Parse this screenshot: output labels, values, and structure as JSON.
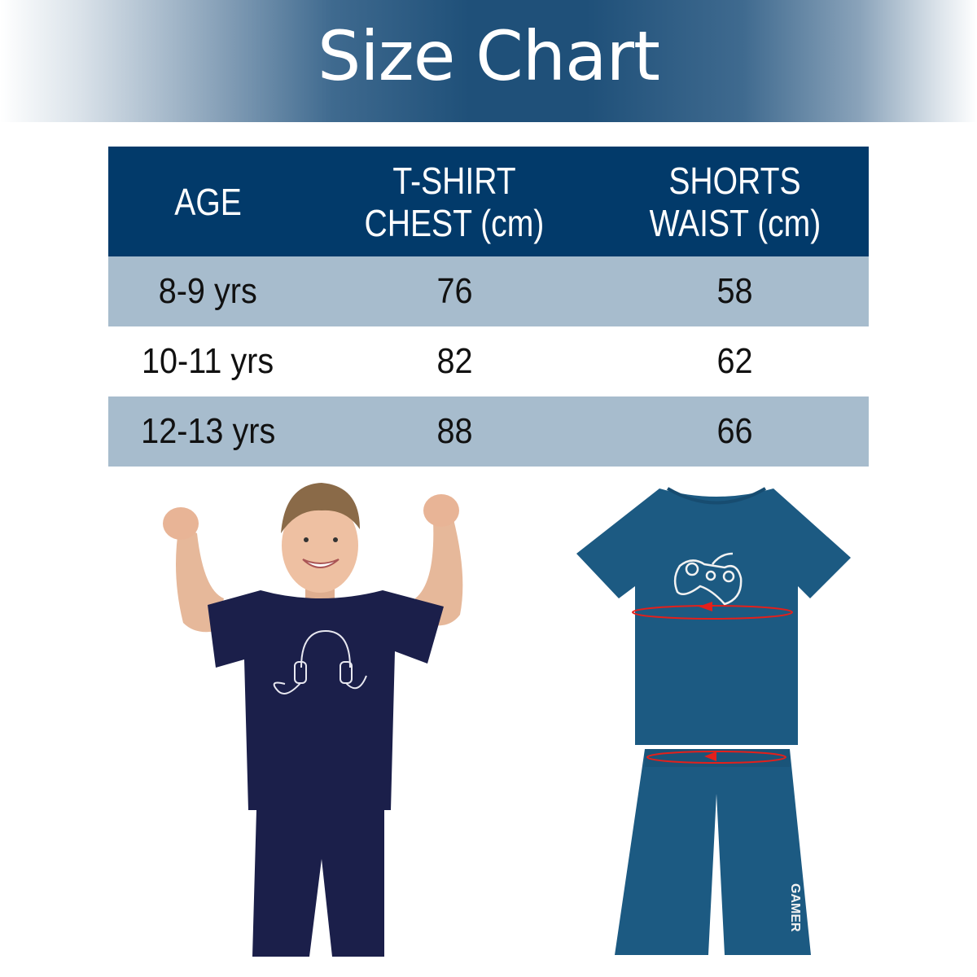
{
  "banner": {
    "title": "Size Chart"
  },
  "table": {
    "headers": [
      [
        "AGE"
      ],
      [
        "T-SHIRT",
        "CHEST (cm)"
      ],
      [
        "SHORTS",
        "WAIST (cm)"
      ]
    ],
    "rows": [
      [
        "8-9 yrs",
        "76",
        "58"
      ],
      [
        "10-11 yrs",
        "82",
        "62"
      ],
      [
        "12-13 yrs",
        "88",
        "66"
      ]
    ]
  },
  "images": {
    "model_photo": "boy wearing navy t-shirt with headphones print and navy shorts",
    "product_photo": "blue t-shirt with game controller print and blue shorts with chest and waist measurement markers",
    "shorts_print": "GAMER"
  },
  "colors": {
    "header": "#023a6a",
    "alt_row": "#a7bccd",
    "measure_marker": "#e3201b",
    "product": "#1c5a82",
    "model_outfit": "#1b1f4a"
  }
}
